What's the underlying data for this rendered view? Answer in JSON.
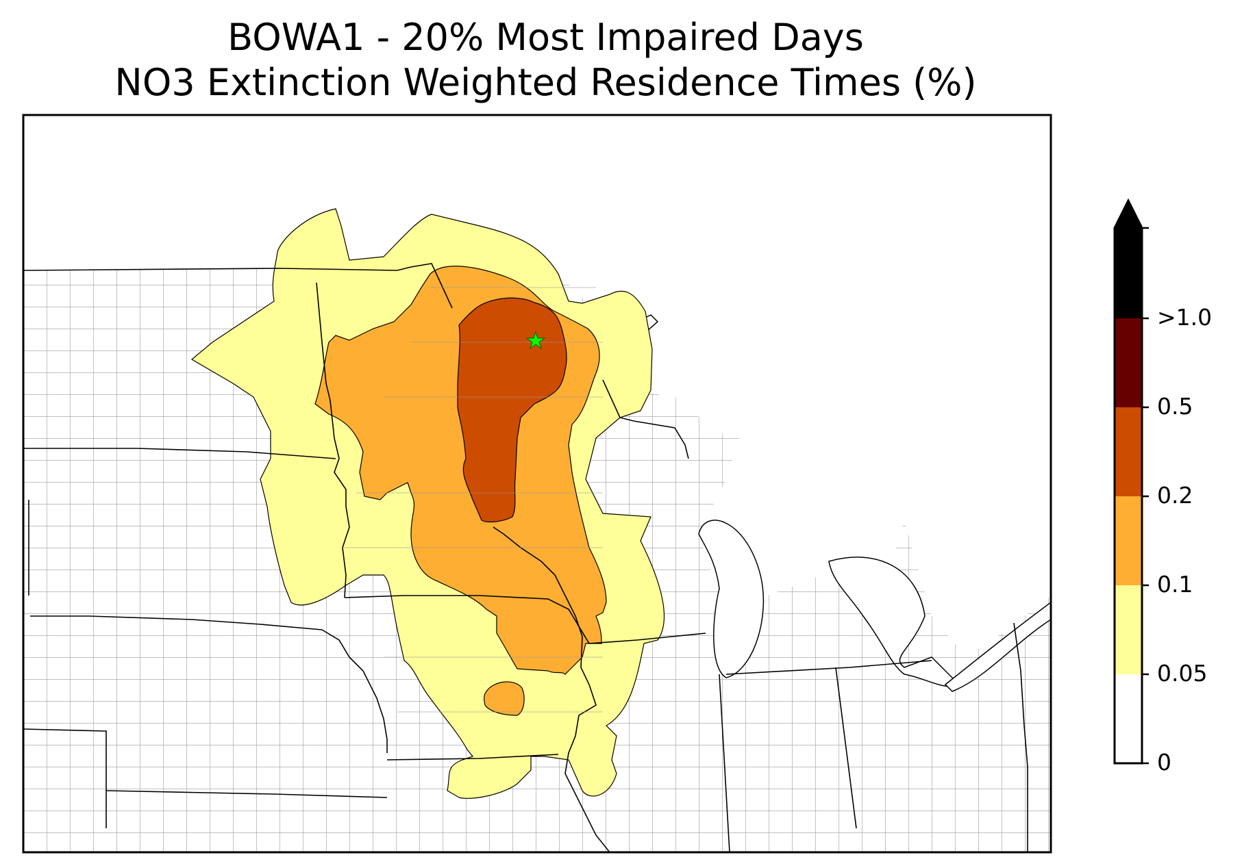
{
  "title_line1": "BOWA1 - 20% Most Impaired Days",
  "title_line2": "NO3 Extinction Weighted Residence Times (%)",
  "legend": {
    "ticks": [
      "0",
      "0.05",
      "0.1",
      "0.2",
      "0.5",
      ">1.0"
    ],
    "bins": [
      {
        "range": "0 - 0.05",
        "color": "#ffffff"
      },
      {
        "range": "0.05 - 0.1",
        "color": "#ffff99"
      },
      {
        "range": "0.1 - 0.2",
        "color": "#fdae33"
      },
      {
        "range": "0.2 - 0.5",
        "color": "#cc4c02"
      },
      {
        "range": "0.5 - 1.0",
        "color": "#660000"
      },
      {
        "range": ">1.0",
        "color": "#000000"
      }
    ]
  },
  "map": {
    "receptor_marker": "green-star",
    "receptor_color": "#00ff00",
    "state_border_color": "#000000",
    "county_border_color": "#999999"
  }
}
